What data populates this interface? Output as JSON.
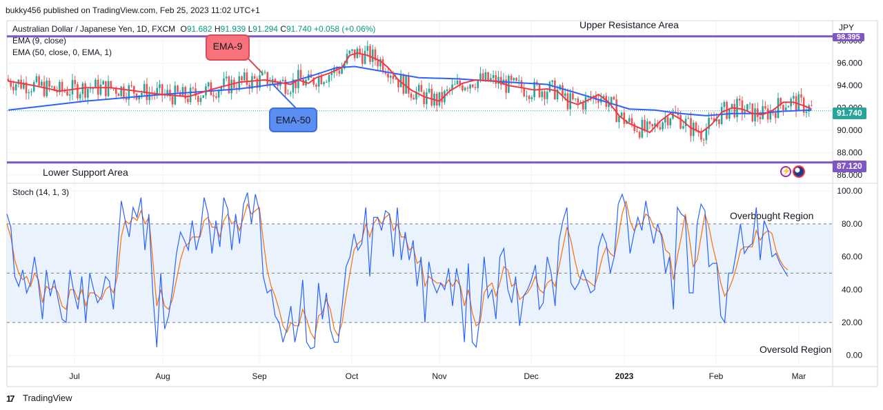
{
  "header": {
    "published": "bukky456 published on TradingView.com, Feb 25, 2023 11:02 UTC+1"
  },
  "legend": {
    "symbol": "Australian Dollar / Japanese Yen, 1D, FXCM",
    "open_label": "O",
    "open": "91.682",
    "high_label": "H",
    "high": "91.939",
    "low_label": "L",
    "low": "91.294",
    "close_label": "C",
    "close": "91.740",
    "change": "+0.058 (+0.06%)",
    "ema9": "EMA (9, close)",
    "ema50": "EMA (50, close, 0, EMA, 1)",
    "stoch": "Stoch (14, 1, 3)"
  },
  "annotations": {
    "upper": "Upper Resistance Area",
    "lower": "Lower Support Area",
    "ema9_callout": "EMA-9",
    "ema50_callout": "EMA-50",
    "overbought": "Overbought Region",
    "oversold": "Oversold Region"
  },
  "price_tags": {
    "resistance": "98.395",
    "current": "91.740",
    "support": "87.120"
  },
  "footer": {
    "brand": "TradingView"
  },
  "colors": {
    "up": "#26a69a",
    "down": "#ef5350",
    "ema9": "#f23645",
    "ema50": "#2962ff",
    "level": "#7e57c2",
    "stoch_k": "#2962ff",
    "stoch_d": "#ff6d00",
    "band": "#e9f2fd"
  },
  "chart_data": [
    {
      "type": "candlestick",
      "title": "Australian Dollar / Japanese Yen, 1D, FXCM",
      "currency": "JPY",
      "x_ticks": [
        "Jul",
        "Aug",
        "Sep",
        "Oct",
        "Nov",
        "Dec",
        "2023",
        "Feb",
        "Mar"
      ],
      "y_ticks": [
        86,
        88,
        90,
        92,
        94,
        96,
        98
      ],
      "y_tick_labels": [
        "86.000",
        "88.000",
        "90.000",
        "92.000",
        "94.000",
        "96.000",
        "98.000"
      ],
      "ylim": [
        85.5,
        99.8
      ],
      "horizontal_levels": [
        {
          "name": "Upper Resistance Area",
          "value": 98.395
        },
        {
          "name": "Lower Support Area",
          "value": 87.12
        }
      ],
      "last_close": 91.74,
      "series": [
        {
          "name": "EMA (9, close)",
          "color": "#f23645",
          "points": [
            [
              0,
              94.4
            ],
            [
              10,
              94.0
            ],
            [
              20,
              93.5
            ],
            [
              30,
              93.8
            ],
            [
              40,
              93.8
            ],
            [
              50,
              93.5
            ],
            [
              60,
              93.2
            ],
            [
              70,
              93.0
            ],
            [
              80,
              93.7
            ],
            [
              90,
              94.3
            ],
            [
              100,
              94.5
            ],
            [
              105,
              94.3
            ],
            [
              110,
              94.1
            ],
            [
              113,
              94.5
            ],
            [
              117,
              94.2
            ],
            [
              120,
              94.7
            ],
            [
              125,
              95.1
            ],
            [
              130,
              95.6
            ],
            [
              133,
              96.7
            ],
            [
              136,
              96.9
            ],
            [
              140,
              96.7
            ],
            [
              145,
              96.2
            ],
            [
              148,
              95.6
            ],
            [
              152,
              94.5
            ],
            [
              157,
              93.6
            ],
            [
              162,
              93.0
            ],
            [
              168,
              92.6
            ],
            [
              172,
              93.5
            ],
            [
              177,
              94.2
            ],
            [
              182,
              94.5
            ],
            [
              190,
              94.4
            ],
            [
              195,
              94.0
            ],
            [
              200,
              93.8
            ],
            [
              205,
              93.6
            ],
            [
              210,
              93.7
            ],
            [
              214,
              93.5
            ],
            [
              218,
              92.6
            ],
            [
              222,
              92.3
            ],
            [
              226,
              92.7
            ],
            [
              230,
              93.2
            ],
            [
              234,
              92.5
            ],
            [
              238,
              91.3
            ],
            [
              242,
              90.6
            ],
            [
              246,
              90.2
            ],
            [
              250,
              89.8
            ],
            [
              254,
              90.8
            ],
            [
              258,
              91.5
            ],
            [
              262,
              91.0
            ],
            [
              266,
              90.2
            ],
            [
              270,
              89.8
            ],
            [
              274,
              90.5
            ],
            [
              278,
              91.6
            ],
            [
              282,
              92.0
            ],
            [
              286,
              91.9
            ],
            [
              290,
              91.5
            ],
            [
              294,
              91.4
            ],
            [
              298,
              91.8
            ],
            [
              302,
              92.5
            ],
            [
              306,
              92.5
            ],
            [
              310,
              92.2
            ],
            [
              313,
              91.9
            ]
          ]
        },
        {
          "name": "EMA (50, close, 0, EMA, 1)",
          "color": "#2962ff",
          "points": [
            [
              0,
              91.8
            ],
            [
              30,
              92.6
            ],
            [
              60,
              93.2
            ],
            [
              90,
              93.7
            ],
            [
              110,
              94.3
            ],
            [
              120,
              95.0
            ],
            [
              128,
              95.6
            ],
            [
              135,
              95.7
            ],
            [
              145,
              95.3
            ],
            [
              160,
              94.7
            ],
            [
              175,
              94.6
            ],
            [
              195,
              94.3
            ],
            [
              210,
              94.1
            ],
            [
              222,
              93.3
            ],
            [
              232,
              92.6
            ],
            [
              242,
              91.9
            ],
            [
              252,
              91.8
            ],
            [
              262,
              91.5
            ],
            [
              272,
              91.3
            ],
            [
              282,
              91.5
            ],
            [
              292,
              91.5
            ],
            [
              302,
              91.7
            ],
            [
              313,
              91.8
            ]
          ]
        }
      ]
    },
    {
      "type": "line",
      "title": "Stoch (14, 1, 3)",
      "y_ticks": [
        0,
        20,
        40,
        60,
        80,
        100
      ],
      "y_tick_labels": [
        "0.00",
        "20.00",
        "40.00",
        "60.00",
        "80.00",
        "100.00"
      ],
      "ylim": [
        -6,
        103
      ],
      "bands": {
        "upper": 80,
        "middle": 50,
        "lower": 20
      },
      "x_ticks": [
        "Jul",
        "Aug",
        "Sep",
        "Oct",
        "Nov",
        "Dec",
        "2023",
        "Feb",
        "Mar"
      ],
      "series": [
        {
          "name": "%K",
          "color": "#2962ff",
          "values": [
            86,
            78,
            48,
            42,
            52,
            38,
            44,
            60,
            44,
            22,
            52,
            36,
            46,
            34,
            22,
            20,
            52,
            38,
            28,
            48,
            20,
            50,
            40,
            32,
            36,
            48,
            45,
            28,
            62,
            94,
            82,
            72,
            90,
            84,
            96,
            64,
            86,
            38,
            5,
            50,
            16,
            24,
            40,
            62,
            75,
            70,
            64,
            82,
            64,
            74,
            96,
            86,
            62,
            82,
            66,
            96,
            89,
            64,
            86,
            68,
            92,
            99,
            80,
            98,
            88,
            48,
            38,
            40,
            24,
            20,
            8,
            16,
            30,
            8,
            20,
            46,
            8,
            4,
            5,
            44,
            22,
            38,
            16,
            8,
            8,
            30,
            54,
            60,
            74,
            64,
            68,
            90,
            48,
            84,
            84,
            76,
            88,
            86,
            60,
            90,
            58,
            75,
            58,
            70,
            42,
            60,
            20,
            57,
            44,
            38,
            44,
            40,
            53,
            30,
            53,
            40,
            8,
            56,
            8,
            5,
            25,
            60,
            35,
            40,
            22,
            60,
            65,
            40,
            32,
            48,
            18,
            36,
            40,
            46,
            55,
            28,
            32,
            60,
            50,
            30,
            70,
            82,
            90,
            44,
            40,
            44,
            52,
            45,
            38,
            40,
            66,
            74,
            68,
            50,
            60,
            92,
            98,
            90,
            62,
            74,
            84,
            76,
            94,
            80,
            68,
            80,
            72,
            50,
            60,
            28,
            90,
            86,
            84,
            38,
            38,
            80,
            92,
            88,
            54,
            56,
            56,
            24,
            20,
            50,
            50,
            64,
            80,
            62,
            66,
            68,
            90,
            58,
            82,
            76,
            60,
            62,
            56,
            52,
            48
          ]
        },
        {
          "name": "%D",
          "color": "#ff6d00",
          "values": [
            80,
            72,
            58,
            50,
            46,
            48,
            42,
            50,
            46,
            32,
            42,
            40,
            42,
            38,
            30,
            28,
            40,
            40,
            34,
            40,
            30,
            38,
            38,
            36,
            34,
            40,
            42,
            38,
            48,
            72,
            82,
            80,
            84,
            82,
            88,
            80,
            84,
            58,
            30,
            40,
            30,
            28,
            34,
            46,
            58,
            66,
            68,
            72,
            72,
            72,
            82,
            84,
            78,
            78,
            72,
            82,
            86,
            80,
            82,
            76,
            84,
            92,
            86,
            88,
            90,
            70,
            52,
            42,
            36,
            28,
            18,
            14,
            20,
            18,
            18,
            28,
            22,
            14,
            10,
            24,
            26,
            34,
            28,
            16,
            12,
            20,
            36,
            50,
            64,
            68,
            70,
            80,
            72,
            80,
            84,
            80,
            84,
            86,
            76,
            80,
            72,
            72,
            64,
            66,
            56,
            58,
            42,
            48,
            46,
            44,
            44,
            42,
            46,
            42,
            46,
            42,
            30,
            40,
            26,
            18,
            20,
            38,
            42,
            44,
            36,
            44,
            54,
            52,
            42,
            44,
            34,
            36,
            38,
            42,
            48,
            40,
            38,
            44,
            46,
            42,
            54,
            66,
            78,
            70,
            58,
            48,
            46,
            46,
            44,
            42,
            50,
            60,
            66,
            62,
            60,
            72,
            86,
            94,
            82,
            76,
            80,
            80,
            86,
            84,
            78,
            76,
            74,
            64,
            62,
            46,
            60,
            72,
            86,
            72,
            54,
            58,
            72,
            86,
            78,
            66,
            56,
            44,
            36,
            40,
            46,
            54,
            64,
            66,
            66,
            66,
            76,
            70,
            74,
            76,
            74,
            64,
            58,
            54,
            52
          ]
        }
      ]
    }
  ]
}
